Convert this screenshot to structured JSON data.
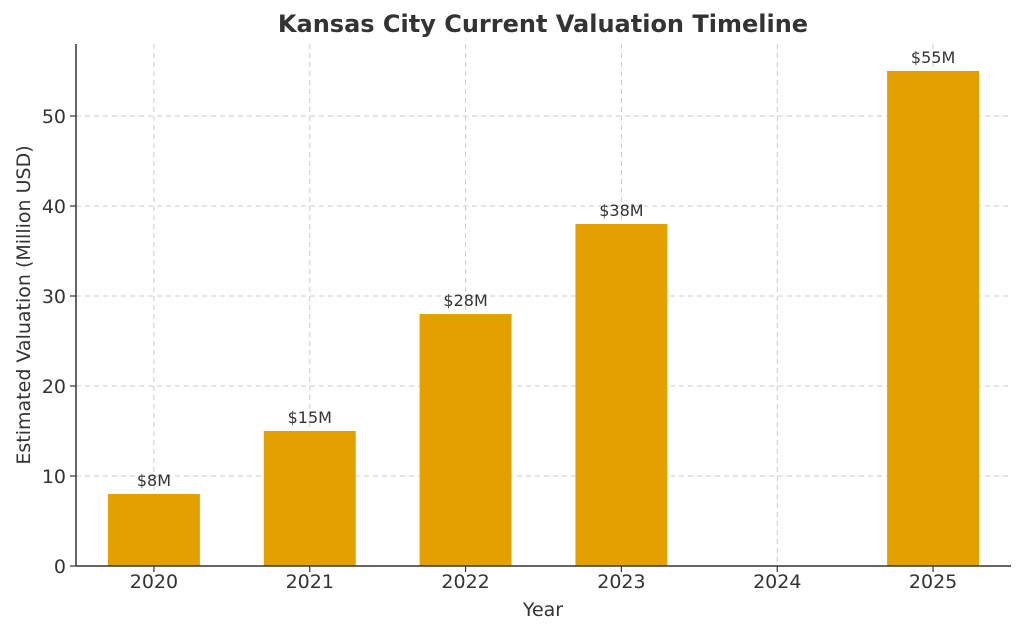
{
  "chart_data": {
    "type": "bar",
    "title": "Kansas City Current Valuation Timeline",
    "xlabel": "Year",
    "ylabel": "Estimated Valuation (Million USD)",
    "categories": [
      "2020",
      "2021",
      "2022",
      "2023",
      "2024",
      "2025"
    ],
    "values": [
      8,
      15,
      28,
      38,
      null,
      55
    ],
    "data_labels": [
      "$8M",
      "$15M",
      "$28M",
      "$38M",
      "",
      "$55M"
    ],
    "ylim": [
      0,
      58
    ],
    "yticks": [
      0,
      10,
      20,
      30,
      40,
      50
    ],
    "grid": true,
    "bar_color": "#E3A000"
  }
}
